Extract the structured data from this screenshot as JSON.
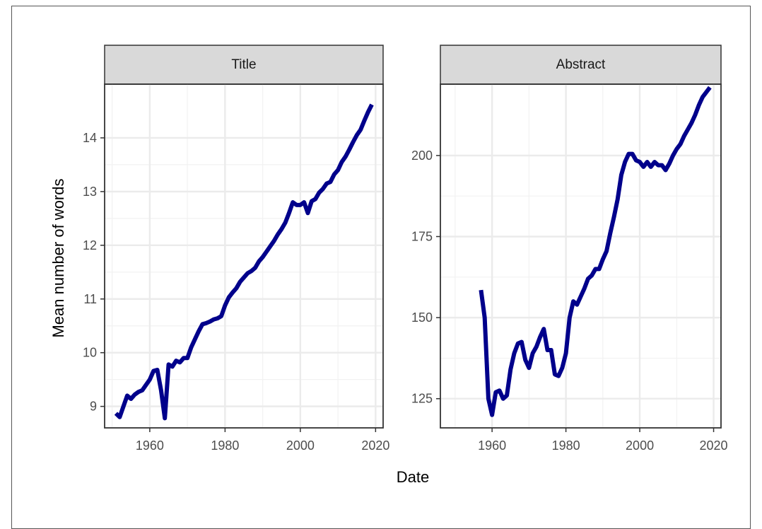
{
  "chart_data": {
    "type": "line",
    "xlabel": "Date",
    "ylabel": "Mean number of words",
    "line_color": "#00008B",
    "grid": true,
    "panels": [
      {
        "label": "Title",
        "xlim": [
          1948,
          2022
        ],
        "ylim": [
          8.6,
          15.0
        ],
        "xticks": [
          1960,
          1980,
          2000,
          2020
        ],
        "yticks": [
          9,
          10,
          11,
          12,
          13,
          14
        ],
        "series": [
          {
            "x": [
              1951,
              1952,
              1953,
              1954,
              1955,
              1956,
              1957,
              1958,
              1959,
              1960,
              1961,
              1962,
              1963,
              1964,
              1965,
              1966,
              1967,
              1968,
              1969,
              1970,
              1971,
              1972,
              1973,
              1974,
              1975,
              1976,
              1977,
              1978,
              1979,
              1980,
              1981,
              1982,
              1983,
              1984,
              1985,
              1986,
              1987,
              1988,
              1989,
              1990,
              1991,
              1992,
              1993,
              1994,
              1995,
              1996,
              1997,
              1998,
              1999,
              2000,
              2001,
              2002,
              2003,
              2004,
              2005,
              2006,
              2007,
              2008,
              2009,
              2010,
              2011,
              2012,
              2013,
              2014,
              2015,
              2016,
              2017,
              2018,
              2019
            ],
            "y": [
              8.87,
              8.8,
              9.0,
              9.2,
              9.14,
              9.22,
              9.27,
              9.3,
              9.4,
              9.5,
              9.66,
              9.68,
              9.3,
              8.78,
              9.78,
              9.74,
              9.85,
              9.82,
              9.9,
              9.9,
              10.1,
              10.25,
              10.4,
              10.53,
              10.55,
              10.58,
              10.62,
              10.64,
              10.68,
              10.88,
              11.03,
              11.12,
              11.2,
              11.32,
              11.4,
              11.48,
              11.52,
              11.58,
              11.7,
              11.78,
              11.88,
              11.98,
              12.08,
              12.2,
              12.3,
              12.42,
              12.6,
              12.8,
              12.75,
              12.75,
              12.8,
              12.6,
              12.82,
              12.86,
              12.98,
              13.05,
              13.15,
              13.18,
              13.32,
              13.4,
              13.55,
              13.65,
              13.78,
              13.92,
              14.05,
              14.15,
              14.32,
              14.48,
              14.62
            ]
          }
        ]
      },
      {
        "label": "Abstract",
        "xlim": [
          1946,
          2022
        ],
        "ylim": [
          116,
          222
        ],
        "xticks": [
          1960,
          1980,
          2000,
          2020
        ],
        "yticks": [
          125,
          150,
          175,
          200
        ],
        "series": [
          {
            "x": [
              1957,
              1958,
              1959,
              1960,
              1961,
              1962,
              1963,
              1964,
              1965,
              1966,
              1967,
              1968,
              1969,
              1970,
              1971,
              1972,
              1973,
              1974,
              1975,
              1976,
              1977,
              1978,
              1979,
              1980,
              1981,
              1982,
              1983,
              1984,
              1985,
              1986,
              1987,
              1988,
              1989,
              1990,
              1991,
              1992,
              1993,
              1994,
              1995,
              1996,
              1997,
              1998,
              1999,
              2000,
              2001,
              2002,
              2003,
              2004,
              2005,
              2006,
              2007,
              2008,
              2009,
              2010,
              2011,
              2012,
              2013,
              2014,
              2015,
              2016,
              2017,
              2018,
              2019
            ],
            "y": [
              158.5,
              150,
              125,
              120,
              127,
              127.5,
              125,
              126,
              134,
              139,
              142,
              142.5,
              137,
              134.5,
              139,
              141,
              144,
              146.5,
              140,
              140,
              132.5,
              132,
              134.5,
              139,
              150,
              155,
              154,
              156.5,
              159,
              162,
              163,
              165,
              165,
              168,
              170.5,
              176,
              181,
              186.5,
              194,
              198,
              200.5,
              200.5,
              198.5,
              198,
              196.5,
              198,
              196.5,
              198,
              197,
              197,
              195.5,
              197.5,
              200,
              202,
              203.5,
              206,
              208,
              210,
              212.5,
              215.5,
              218,
              219.5,
              221
            ]
          }
        ]
      }
    ]
  }
}
